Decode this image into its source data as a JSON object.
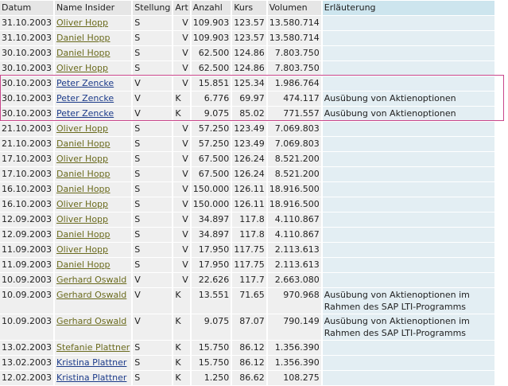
{
  "columns": [
    "Datum",
    "Name Insider",
    "Stellung",
    "Art",
    "Anzahl",
    "Kurs",
    "Volumen",
    "Erläuterung"
  ],
  "link_colors": {
    "olive": "#6b6b1e",
    "blue": "#1c3b8a"
  },
  "highlight_color": "#c8458a",
  "rows": [
    {
      "datum": "31.10.2003",
      "name": "Oliver Hopp",
      "link": "olive",
      "stellung": "S",
      "art": "V",
      "anzahl": "109.903",
      "kurs": "123.57",
      "volumen": "13.580.714",
      "erl": ""
    },
    {
      "datum": "31.10.2003",
      "name": "Daniel Hopp",
      "link": "olive",
      "stellung": "S",
      "art": "V",
      "anzahl": "109.903",
      "kurs": "123.57",
      "volumen": "13.580.714",
      "erl": ""
    },
    {
      "datum": "30.10.2003",
      "name": "Daniel Hopp",
      "link": "olive",
      "stellung": "S",
      "art": "V",
      "anzahl": "62.500",
      "kurs": "124.86",
      "volumen": "7.803.750",
      "erl": ""
    },
    {
      "datum": "30.10.2003",
      "name": "Oliver Hopp",
      "link": "olive",
      "stellung": "S",
      "art": "V",
      "anzahl": "62.500",
      "kurs": "124.86",
      "volumen": "7.803.750",
      "erl": ""
    },
    {
      "datum": "30.10.2003",
      "name": "Peter Zencke",
      "link": "blue",
      "stellung": "V",
      "art": "V",
      "anzahl": "15.851",
      "kurs": "125.34",
      "volumen": "1.986.764",
      "erl": "",
      "highlighted": true
    },
    {
      "datum": "30.10.2003",
      "name": "Peter Zencke",
      "link": "blue",
      "stellung": "V",
      "art": "K",
      "anzahl": "6.776",
      "kurs": "69.97",
      "volumen": "474.117",
      "erl": "Ausübung von Aktienoptionen",
      "highlighted": true
    },
    {
      "datum": "30.10.2003",
      "name": "Peter Zencke",
      "link": "blue",
      "stellung": "V",
      "art": "K",
      "anzahl": "9.075",
      "kurs": "85.02",
      "volumen": "771.557",
      "erl": "Ausübung von Aktienoptionen",
      "highlighted": true
    },
    {
      "datum": "21.10.2003",
      "name": "Oliver Hopp",
      "link": "olive",
      "stellung": "S",
      "art": "V",
      "anzahl": "57.250",
      "kurs": "123.49",
      "volumen": "7.069.803",
      "erl": ""
    },
    {
      "datum": "21.10.2003",
      "name": "Daniel Hopp",
      "link": "olive",
      "stellung": "S",
      "art": "V",
      "anzahl": "57.250",
      "kurs": "123.49",
      "volumen": "7.069.803",
      "erl": ""
    },
    {
      "datum": "17.10.2003",
      "name": "Oliver Hopp",
      "link": "olive",
      "stellung": "S",
      "art": "V",
      "anzahl": "67.500",
      "kurs": "126.24",
      "volumen": "8.521.200",
      "erl": ""
    },
    {
      "datum": "17.10.2003",
      "name": "Daniel Hopp",
      "link": "olive",
      "stellung": "S",
      "art": "V",
      "anzahl": "67.500",
      "kurs": "126.24",
      "volumen": "8.521.200",
      "erl": ""
    },
    {
      "datum": "16.10.2003",
      "name": "Daniel Hopp",
      "link": "olive",
      "stellung": "S",
      "art": "V",
      "anzahl": "150.000",
      "kurs": "126.11",
      "volumen": "18.916.500",
      "erl": ""
    },
    {
      "datum": "16.10.2003",
      "name": "Oliver Hopp",
      "link": "olive",
      "stellung": "S",
      "art": "V",
      "anzahl": "150.000",
      "kurs": "126.11",
      "volumen": "18.916.500",
      "erl": ""
    },
    {
      "datum": "12.09.2003",
      "name": "Oliver Hopp",
      "link": "olive",
      "stellung": "S",
      "art": "V",
      "anzahl": "34.897",
      "kurs": "117.8",
      "volumen": "4.110.867",
      "erl": ""
    },
    {
      "datum": "12.09.2003",
      "name": "Daniel Hopp",
      "link": "olive",
      "stellung": "S",
      "art": "V",
      "anzahl": "34.897",
      "kurs": "117.8",
      "volumen": "4.110.867",
      "erl": ""
    },
    {
      "datum": "11.09.2003",
      "name": "Oliver Hopp",
      "link": "olive",
      "stellung": "S",
      "art": "V",
      "anzahl": "17.950",
      "kurs": "117.75",
      "volumen": "2.113.613",
      "erl": ""
    },
    {
      "datum": "11.09.2003",
      "name": "Daniel Hopp",
      "link": "olive",
      "stellung": "S",
      "art": "V",
      "anzahl": "17.950",
      "kurs": "117.75",
      "volumen": "2.113.613",
      "erl": ""
    },
    {
      "datum": "10.09.2003",
      "name": "Gerhard Oswald",
      "link": "olive",
      "stellung": "V",
      "art": "V",
      "anzahl": "22.626",
      "kurs": "117.7",
      "volumen": "2.663.080",
      "erl": ""
    },
    {
      "datum": "10.09.2003",
      "name": "Gerhard Oswald",
      "link": "olive",
      "stellung": "V",
      "art": "K",
      "anzahl": "13.551",
      "kurs": "71.65",
      "volumen": "970.968",
      "erl": "Ausübung von Aktienoptionen im Rahmen des SAP LTI-Programms"
    },
    {
      "datum": "10.09.2003",
      "name": "Gerhard Oswald",
      "link": "olive",
      "stellung": "V",
      "art": "K",
      "anzahl": "9.075",
      "kurs": "87.07",
      "volumen": "790.149",
      "erl": "Ausübung von Aktienoptionen im Rahmen des SAP LTI-Programms"
    },
    {
      "datum": "13.02.2003",
      "name": "Stefanie Plattner",
      "link": "olive",
      "stellung": "S",
      "art": "K",
      "anzahl": "15.750",
      "kurs": "86.12",
      "volumen": "1.356.390",
      "erl": ""
    },
    {
      "datum": "13.02.2003",
      "name": "Kristina Plattner",
      "link": "blue",
      "stellung": "S",
      "art": "K",
      "anzahl": "15.750",
      "kurs": "86.12",
      "volumen": "1.356.390",
      "erl": ""
    },
    {
      "datum": "12.02.2003",
      "name": "Kristina Plattner",
      "link": "blue",
      "stellung": "S",
      "art": "K",
      "anzahl": "1.250",
      "kurs": "86.62",
      "volumen": "108.275",
      "erl": ""
    }
  ]
}
